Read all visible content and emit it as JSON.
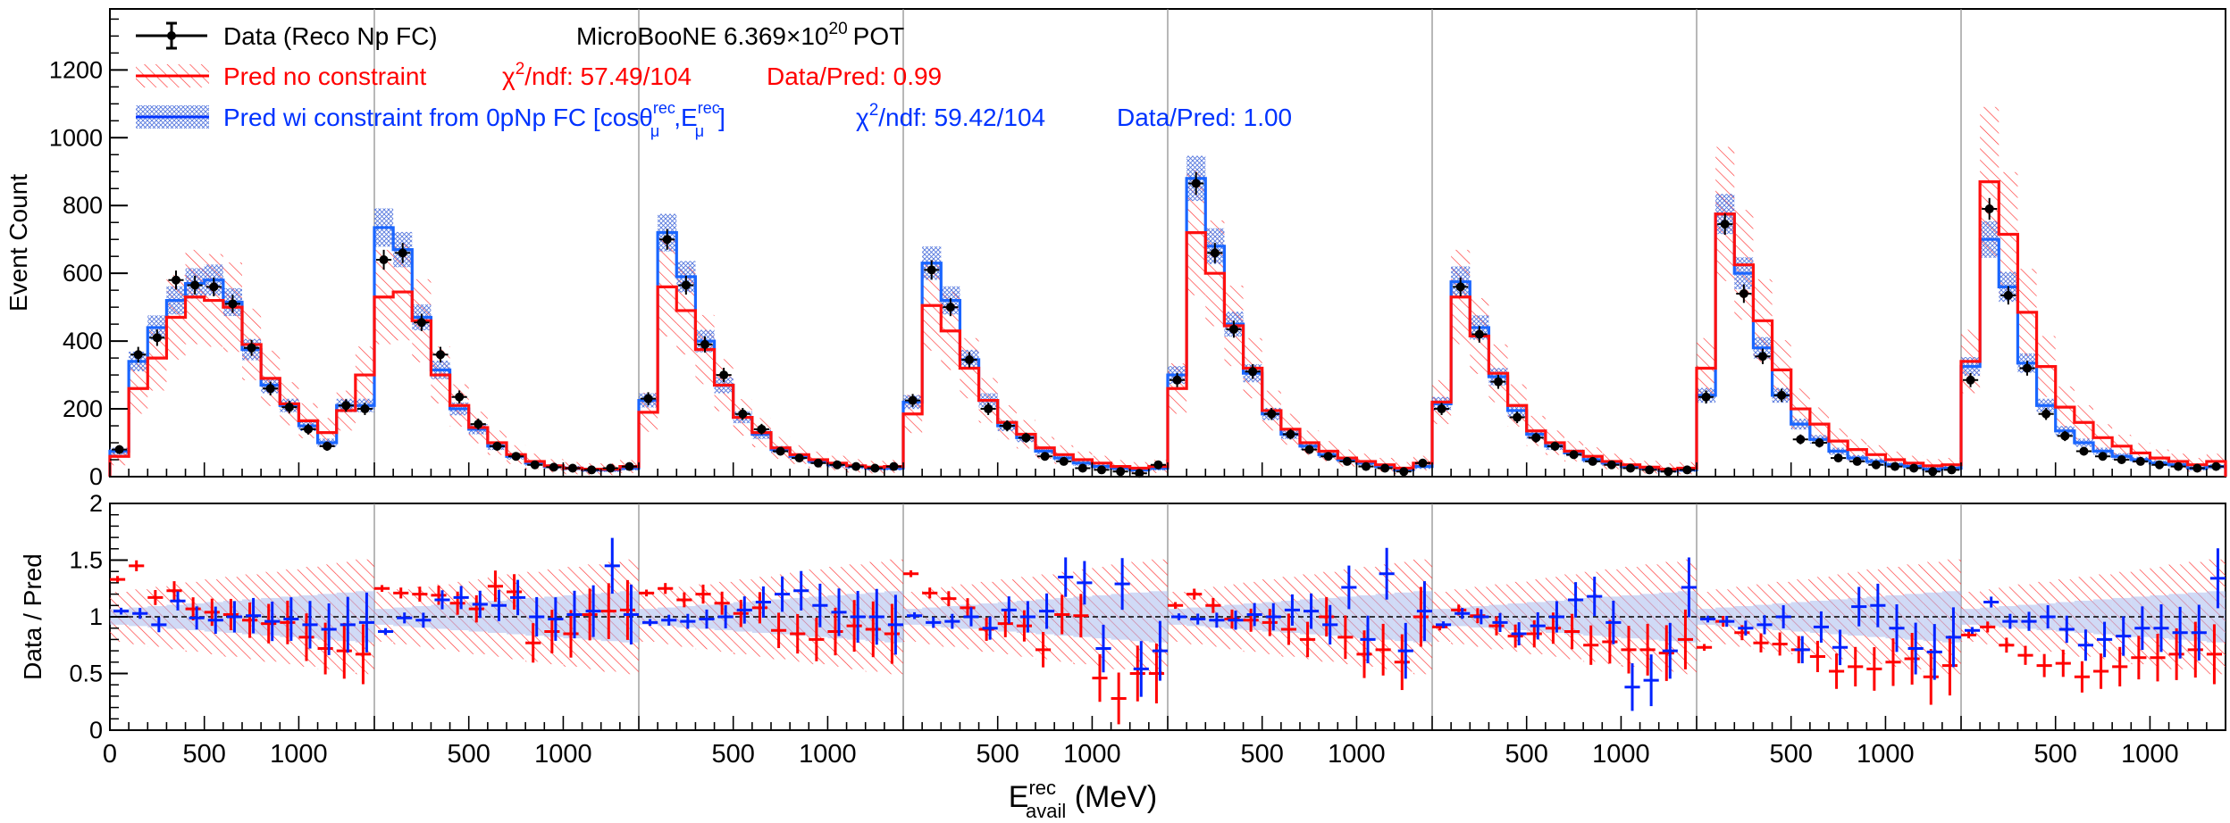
{
  "figure": {
    "experiment_label": "MicroBooNE 6.369×10",
    "experiment_pot_exp": "20",
    "experiment_pot_unit": "POT"
  },
  "legend": {
    "data": "Data (Reco Np FC)",
    "pred_nc": "Pred no constraint",
    "pred_nc_chi2_prefix": "χ",
    "pred_nc_chi2_sup": "2",
    "pred_nc_chi2_rest": "/ndf: 57.49/104",
    "pred_nc_ratio": "Data/Pred: 0.99",
    "pred_wc": "Pred wi constraint from 0pNp FC [cosθ",
    "pred_wc_sup1": "rec",
    "pred_wc_sub1": "μ",
    "pred_wc_mid": ",E",
    "pred_wc_sup2": "rec",
    "pred_wc_sub2": "μ",
    "pred_wc_close": "]",
    "pred_wc_chi2_prefix": "χ",
    "pred_wc_chi2_sup": "2",
    "pred_wc_chi2_rest": "/ndf: 59.42/104",
    "pred_wc_ratio": "Data/Pred: 1.00"
  },
  "colors": {
    "data": "#000000",
    "pred_nc": "#ff0000",
    "pred_wc": "#0033ff",
    "wc_band": "#7799ee",
    "nc_band": "#ff5555"
  },
  "chart_data": [
    {
      "type": "bar",
      "title": "",
      "ylabel": "Event Count",
      "ylim": [
        0,
        1380
      ],
      "yticks": [
        "0",
        "200",
        "400",
        "600",
        "800",
        "1000",
        "1200"
      ],
      "ytick_values": [
        0,
        200,
        400,
        600,
        800,
        1000,
        1200
      ],
      "categories_note": "8 angular slices, each with 14 energy bins 0-1400 MeV (100 MeV width)",
      "series": [
        {
          "name": "Data (Reco Np FC)",
          "values": [
            [
              80,
              360,
              410,
              580,
              565,
              560,
              510,
              380,
              260,
              205,
              140,
              90,
              210,
              200
            ],
            [
              640,
              660,
              455,
              360,
              235,
              155,
              90,
              60,
              35,
              28,
              25,
              20,
              25,
              30
            ],
            [
              230,
              700,
              565,
              390,
              300,
              185,
              140,
              75,
              55,
              40,
              35,
              30,
              25,
              30
            ],
            [
              225,
              610,
              500,
              345,
              200,
              150,
              115,
              60,
              45,
              25,
              20,
              15,
              10,
              35
            ],
            [
              285,
              865,
              660,
              435,
              310,
              185,
              125,
              80,
              60,
              45,
              30,
              25,
              15,
              40
            ],
            [
              200,
              560,
              420,
              280,
              175,
              115,
              90,
              65,
              45,
              35,
              25,
              20,
              15,
              20
            ],
            [
              235,
              745,
              540,
              355,
              240,
              110,
              100,
              55,
              45,
              35,
              30,
              25,
              15,
              20
            ],
            [
              285,
              790,
              535,
              320,
              185,
              120,
              75,
              60,
              50,
              45,
              35,
              30,
              25,
              30
            ]
          ]
        },
        {
          "name": "Pred no constraint",
          "values": [
            [
              60,
              260,
              350,
              470,
              530,
              520,
              500,
              390,
              290,
              215,
              165,
              130,
              195,
              300
            ],
            [
              530,
              545,
              460,
              300,
              210,
              145,
              100,
              65,
              45,
              32,
              25,
              22,
              22,
              30
            ],
            [
              190,
              560,
              490,
              375,
              270,
              175,
              130,
              85,
              65,
              50,
              40,
              32,
              28,
              30
            ],
            [
              185,
              505,
              430,
              320,
              225,
              160,
              125,
              85,
              65,
              50,
              40,
              30,
              25,
              30
            ],
            [
              260,
              720,
              600,
              445,
              320,
              195,
              140,
              100,
              75,
              55,
              45,
              35,
              25,
              40
            ],
            [
              220,
              530,
              415,
              305,
              210,
              135,
              100,
              75,
              60,
              45,
              35,
              28,
              22,
              25
            ],
            [
              320,
              775,
              625,
              460,
              315,
              200,
              155,
              105,
              80,
              65,
              50,
              40,
              32,
              35
            ],
            [
              340,
              870,
              715,
              485,
              325,
              205,
              160,
              115,
              90,
              70,
              55,
              45,
              35,
              45
            ]
          ]
        },
        {
          "name": "Pred wi constraint from 0pNp FC",
          "values": [
            [
              75,
              340,
              440,
              520,
              570,
              580,
              515,
              375,
              270,
              210,
              150,
              100,
              210,
              210
            ],
            [
              735,
              670,
              470,
              315,
              200,
              140,
              90,
              60,
              40,
              30,
              25,
              20,
              20,
              25
            ],
            [
              225,
              720,
              590,
              400,
              270,
              175,
              125,
              80,
              60,
              45,
              35,
              30,
              25,
              25
            ],
            [
              220,
              630,
              520,
              345,
              225,
              150,
              115,
              75,
              55,
              40,
              30,
              25,
              20,
              25
            ],
            [
              300,
              880,
              680,
              450,
              305,
              185,
              125,
              90,
              65,
              50,
              40,
              30,
              20,
              30
            ],
            [
              215,
              575,
              440,
              295,
              195,
              125,
              90,
              70,
              50,
              40,
              30,
              25,
              18,
              20
            ],
            [
              240,
              775,
              600,
              380,
              240,
              155,
              110,
              75,
              55,
              45,
              35,
              30,
              22,
              25
            ],
            [
              325,
              700,
              560,
              335,
              210,
              135,
              100,
              75,
              60,
              50,
              40,
              35,
              25,
              30
            ]
          ]
        }
      ],
      "xticks": [
        "0",
        "500",
        "1000"
      ]
    },
    {
      "type": "scatter",
      "ylabel": "Data / Pred",
      "xlabel": "E",
      "xlabel_sup": "rec",
      "xlabel_sub": "avail",
      "xlabel_unit": " (MeV)",
      "ylim": [
        0,
        2
      ],
      "yticks": [
        "0",
        "0.5",
        "1",
        "1.5",
        "2"
      ],
      "ytick_values": [
        0,
        0.5,
        1,
        1.5,
        2
      ],
      "xticks": [
        "0",
        "500",
        "1000"
      ],
      "series": [
        {
          "name": "Data/Pred no constraint",
          "values": [
            [
              1.33,
              1.45,
              1.17,
              1.23,
              1.07,
              1.04,
              1.02,
              0.97,
              0.94,
              0.95,
              0.82,
              0.72,
              0.7,
              0.67
            ],
            [
              1.25,
              1.21,
              1.2,
              1.19,
              1.12,
              1.07,
              1.27,
              1.22,
              0.77,
              0.87,
              0.85,
              1.02,
              1.05,
              1.06
            ],
            [
              1.21,
              1.25,
              1.15,
              1.2,
              1.12,
              1.03,
              1.08,
              0.88,
              0.85,
              0.8,
              0.87,
              0.92,
              0.89,
              0.85
            ],
            [
              1.38,
              1.21,
              1.16,
              1.08,
              0.89,
              0.94,
              0.92,
              0.71,
              1.02,
              1.01,
              0.46,
              0.28,
              0.5,
              0.5
            ],
            [
              1.1,
              1.2,
              1.1,
              0.98,
              0.97,
              0.95,
              0.89,
              0.8,
              1.0,
              0.82,
              0.67,
              0.71,
              0.6,
              1.0
            ],
            [
              0.91,
              1.06,
              1.01,
              0.92,
              0.83,
              0.85,
              0.9,
              0.87,
              0.75,
              0.78,
              0.71,
              0.71,
              0.68,
              0.8
            ],
            [
              0.73,
              0.96,
              0.86,
              0.77,
              0.76,
              0.71,
              0.65,
              0.52,
              0.56,
              0.54,
              0.6,
              0.63,
              0.47,
              0.57
            ],
            [
              0.84,
              0.91,
              0.75,
              0.66,
              0.57,
              0.59,
              0.47,
              0.52,
              0.56,
              0.64,
              0.64,
              0.67,
              0.71,
              0.67
            ]
          ]
        },
        {
          "name": "Data/Pred wi constraint",
          "values": [
            [
              1.05,
              1.03,
              0.93,
              1.14,
              0.99,
              0.97,
              1.0,
              1.01,
              0.96,
              0.98,
              0.93,
              0.89,
              0.93,
              0.95
            ],
            [
              0.87,
              0.99,
              0.97,
              1.15,
              1.17,
              1.11,
              1.1,
              1.17,
              1.0,
              0.98,
              1.02,
              1.05,
              1.45,
              1.02
            ],
            [
              0.95,
              0.97,
              0.96,
              0.98,
              1.0,
              1.06,
              1.13,
              1.2,
              1.23,
              1.1,
              1.04,
              1.0,
              1.0,
              0.93
            ],
            [
              1.01,
              0.95,
              0.96,
              1.0,
              0.9,
              1.06,
              1.0,
              1.05,
              1.35,
              1.3,
              0.72,
              1.29,
              0.54,
              0.7
            ],
            [
              1.0,
              0.98,
              0.97,
              0.97,
              1.02,
              1.0,
              1.06,
              1.05,
              0.93,
              1.26,
              0.8,
              1.38,
              0.7,
              1.05
            ],
            [
              0.93,
              1.03,
              1.0,
              0.95,
              0.85,
              0.92,
              1.0,
              1.15,
              1.18,
              0.95,
              0.38,
              0.44,
              0.7,
              1.26
            ],
            [
              0.98,
              0.96,
              0.9,
              0.93,
              1.0,
              0.71,
              0.91,
              0.73,
              1.09,
              1.1,
              0.9,
              0.72,
              0.69,
              0.82
            ],
            [
              0.88,
              1.13,
              0.96,
              0.96,
              1.0,
              0.89,
              0.75,
              0.8,
              0.83,
              0.9,
              0.9,
              0.86,
              0.86,
              1.34
            ]
          ]
        }
      ]
    }
  ]
}
